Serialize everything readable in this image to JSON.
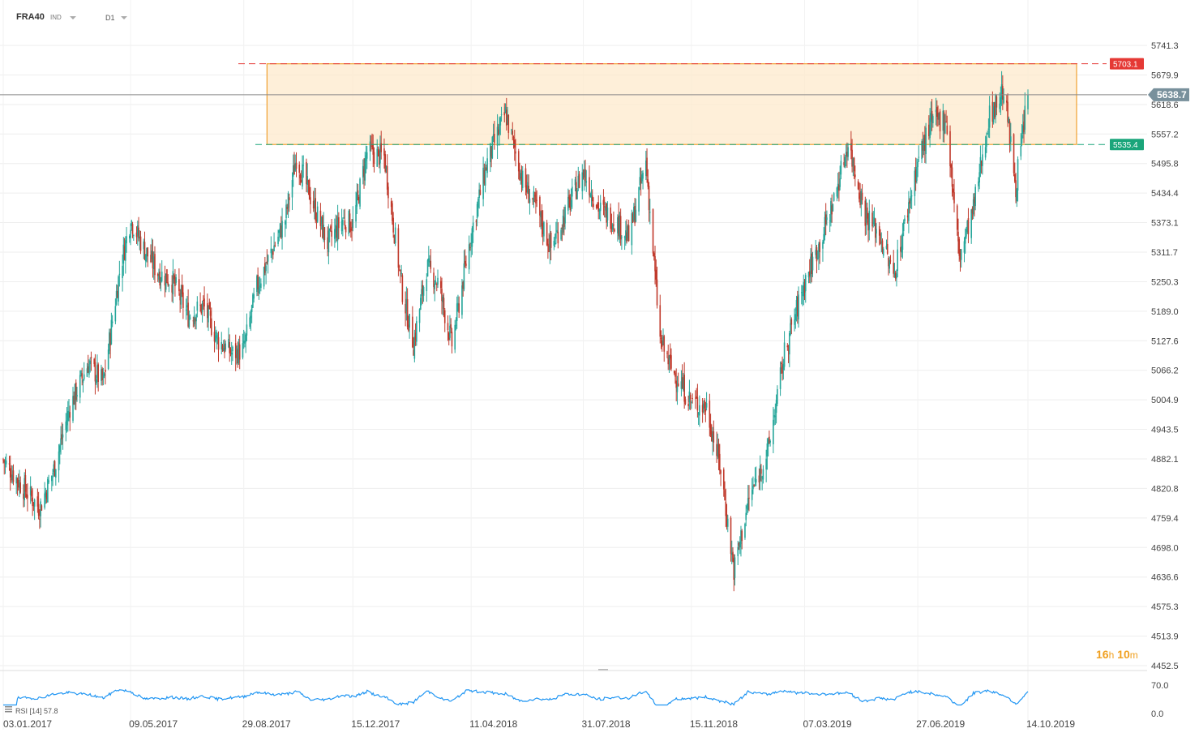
{
  "toolbar": {
    "symbol": "FRA40",
    "instrument_type": "IND",
    "timeframe": "D1",
    "type_dropdown_icon": "chevron-down-icon",
    "timeframe_dropdown_icon": "chevron-down-icon"
  },
  "countdown": {
    "hours": "16",
    "h": "h",
    "minutes": "10",
    "m": "m"
  },
  "rsi": {
    "label": "RSI",
    "period": "[14]",
    "value": "57.8",
    "levels": [
      "70.0",
      "0.0"
    ]
  },
  "colors": {
    "up": "#26a69a",
    "down": "#c0392b",
    "zone_fill": "#fde9cc",
    "zone_border": "#f0a030",
    "resistance": "#e53935",
    "support": "#1aa57a",
    "rsi_line": "#2196f3"
  },
  "chart_data": {
    "type": "candlestick",
    "title": "FRA40",
    "timeframe": "D1",
    "x_tick_labels": [
      "03.01.2017",
      "09.05.2017",
      "29.08.2017",
      "15.12.2017",
      "11.04.2018",
      "31.07.2018",
      "15.11.2018",
      "07.03.2019",
      "27.06.2019",
      "14.10.2019"
    ],
    "y_tick_labels": [
      "5741.3",
      "5679.9",
      "5618.6",
      "5557.2",
      "5495.8",
      "5434.4",
      "5373.1",
      "5311.7",
      "5250.3",
      "5189.0",
      "5127.6",
      "5066.2",
      "5004.9",
      "4943.5",
      "4882.1",
      "4820.8",
      "4759.4",
      "4698.0",
      "4636.6",
      "4575.3",
      "4513.9",
      "4452.5"
    ],
    "ylim": [
      4452.5,
      5741.3
    ],
    "current_price": 5638.7,
    "resistance_level": 5703.1,
    "support_level": 5535.4,
    "zone": {
      "start": "21.09.2017",
      "end": "14.10.2019",
      "low": 5535.4,
      "high": 5703.1
    },
    "series": [
      {
        "points": [
          [
            "03.01.2017",
            4880
          ],
          [
            "20.01.2017",
            4830
          ],
          [
            "08.02.2017",
            4780
          ],
          [
            "22.02.2017",
            4860
          ],
          [
            "10.03.2017",
            4990
          ],
          [
            "28.03.2017",
            5080
          ],
          [
            "12.04.2017",
            5040
          ],
          [
            "28.04.2017",
            5270
          ],
          [
            "09.05.2017",
            5380
          ],
          [
            "22.05.2017",
            5320
          ],
          [
            "05.06.2017",
            5270
          ],
          [
            "20.06.2017",
            5250
          ],
          [
            "05.07.2017",
            5180
          ],
          [
            "20.07.2017",
            5200
          ],
          [
            "03.08.2017",
            5130
          ],
          [
            "18.08.2017",
            5100
          ],
          [
            "29.08.2017",
            5110
          ],
          [
            "11.09.2017",
            5240
          ],
          [
            "25.09.2017",
            5310
          ],
          [
            "09.10.2017",
            5380
          ],
          [
            "20.10.2017",
            5510
          ],
          [
            "06.11.2017",
            5410
          ],
          [
            "20.11.2017",
            5330
          ],
          [
            "05.12.2017",
            5380
          ],
          [
            "15.12.2017",
            5370
          ],
          [
            "29.12.2017",
            5520
          ],
          [
            "15.01.2018",
            5510
          ],
          [
            "02.02.2018",
            5230
          ],
          [
            "13.02.2018",
            5120
          ],
          [
            "26.02.2018",
            5280
          ],
          [
            "09.03.2018",
            5250
          ],
          [
            "23.03.2018",
            5120
          ],
          [
            "11.04.2018",
            5350
          ],
          [
            "27.04.2018",
            5500
          ],
          [
            "15.05.2018",
            5600
          ],
          [
            "01.06.2018",
            5460
          ],
          [
            "15.06.2018",
            5400
          ],
          [
            "29.06.2018",
            5320
          ],
          [
            "13.07.2018",
            5390
          ],
          [
            "31.07.2018",
            5480
          ],
          [
            "16.08.2018",
            5400
          ],
          [
            "31.08.2018",
            5380
          ],
          [
            "14.09.2018",
            5340
          ],
          [
            "01.10.2018",
            5500
          ],
          [
            "15.10.2018",
            5130
          ],
          [
            "26.10.2018",
            5070
          ],
          [
            "15.11.2018",
            5000
          ],
          [
            "30.11.2018",
            4990
          ],
          [
            "14.12.2018",
            4860
          ],
          [
            "27.12.2018",
            4650
          ],
          [
            "11.01.2019",
            4800
          ],
          [
            "30.01.2019",
            4900
          ],
          [
            "15.02.2019",
            5100
          ],
          [
            "07.03.2019",
            5250
          ],
          [
            "22.03.2019",
            5330
          ],
          [
            "05.04.2019",
            5420
          ],
          [
            "19.04.2019",
            5540
          ],
          [
            "06.05.2019",
            5390
          ],
          [
            "20.05.2019",
            5350
          ],
          [
            "03.06.2019",
            5260
          ],
          [
            "27.06.2019",
            5500
          ],
          [
            "10.07.2019",
            5580
          ],
          [
            "25.07.2019",
            5590
          ],
          [
            "07.08.2019",
            5300
          ],
          [
            "21.08.2019",
            5400
          ],
          [
            "05.09.2019",
            5590
          ],
          [
            "20.09.2019",
            5650
          ],
          [
            "02.10.2019",
            5450
          ],
          [
            "14.10.2019",
            5640
          ]
        ]
      }
    ]
  }
}
